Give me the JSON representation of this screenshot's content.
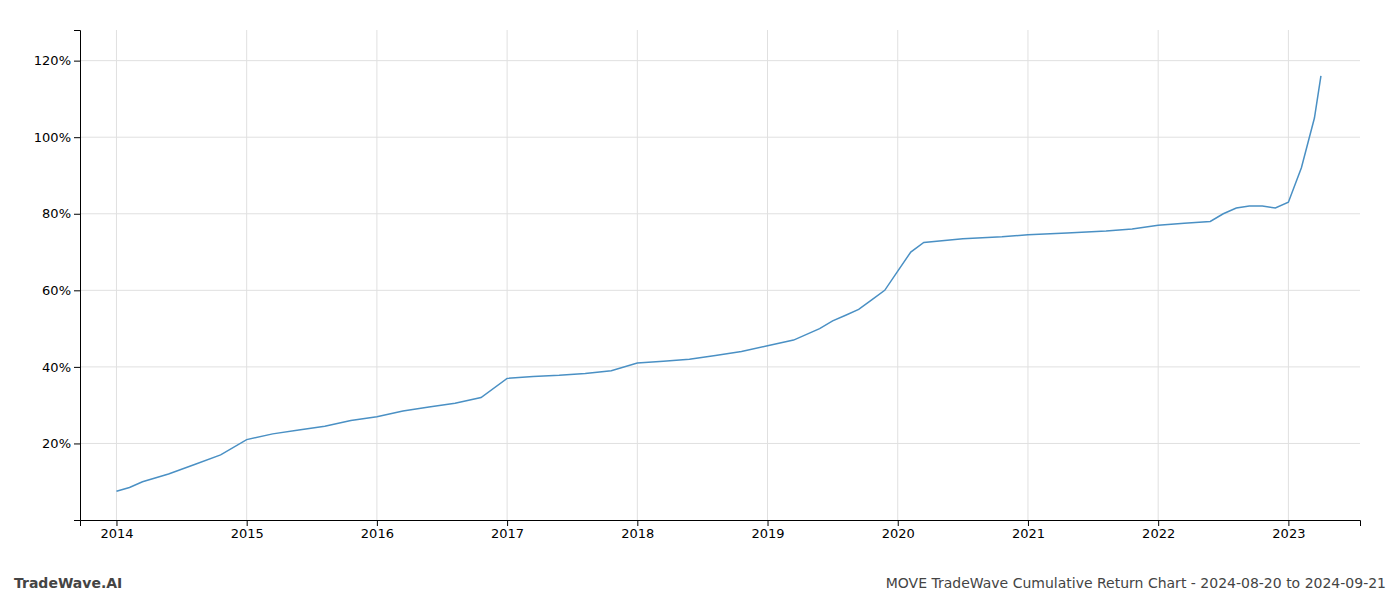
{
  "chart_data": {
    "type": "line",
    "x": [
      2014.0,
      2014.1,
      2014.2,
      2014.4,
      2014.6,
      2014.8,
      2015.0,
      2015.2,
      2015.4,
      2015.6,
      2015.8,
      2016.0,
      2016.2,
      2016.4,
      2016.6,
      2016.8,
      2017.0,
      2017.2,
      2017.4,
      2017.6,
      2017.8,
      2018.0,
      2018.2,
      2018.4,
      2018.6,
      2018.8,
      2019.0,
      2019.2,
      2019.4,
      2019.5,
      2019.6,
      2019.7,
      2019.8,
      2019.9,
      2020.0,
      2020.1,
      2020.2,
      2020.5,
      2020.8,
      2021.0,
      2021.3,
      2021.6,
      2021.8,
      2022.0,
      2022.2,
      2022.4,
      2022.5,
      2022.6,
      2022.7,
      2022.8,
      2022.9,
      2023.0,
      2023.1,
      2023.2,
      2023.25
    ],
    "values": [
      0.075,
      0.085,
      0.1,
      0.12,
      0.145,
      0.17,
      0.21,
      0.225,
      0.235,
      0.245,
      0.26,
      0.27,
      0.285,
      0.295,
      0.305,
      0.32,
      0.37,
      0.375,
      0.378,
      0.383,
      0.39,
      0.41,
      0.415,
      0.42,
      0.43,
      0.44,
      0.455,
      0.47,
      0.5,
      0.52,
      0.535,
      0.55,
      0.575,
      0.6,
      0.65,
      0.7,
      0.725,
      0.735,
      0.74,
      0.745,
      0.75,
      0.755,
      0.76,
      0.77,
      0.775,
      0.78,
      0.8,
      0.815,
      0.82,
      0.82,
      0.815,
      0.83,
      0.92,
      1.05,
      1.16
    ],
    "color": "#4a90c4",
    "xlim": [
      2013.72,
      2023.55
    ],
    "xticks": [
      2014,
      2015,
      2016,
      2017,
      2018,
      2019,
      2020,
      2021,
      2022,
      2023
    ],
    "ylim": [
      0.0,
      1.28
    ],
    "yticks": [
      {
        "value": 0.2,
        "label": "20%"
      },
      {
        "value": 0.4,
        "label": "40%"
      },
      {
        "value": 0.6,
        "label": "60%"
      },
      {
        "value": 0.8,
        "label": "80%"
      },
      {
        "value": 1.0,
        "label": "100%"
      },
      {
        "value": 1.2,
        "label": "120%"
      }
    ],
    "grid": true,
    "annotations": [
      "TradeWave.AI",
      "MOVE TradeWave Cumulative Return Chart - 2024-08-20 to 2024-09-21"
    ]
  }
}
